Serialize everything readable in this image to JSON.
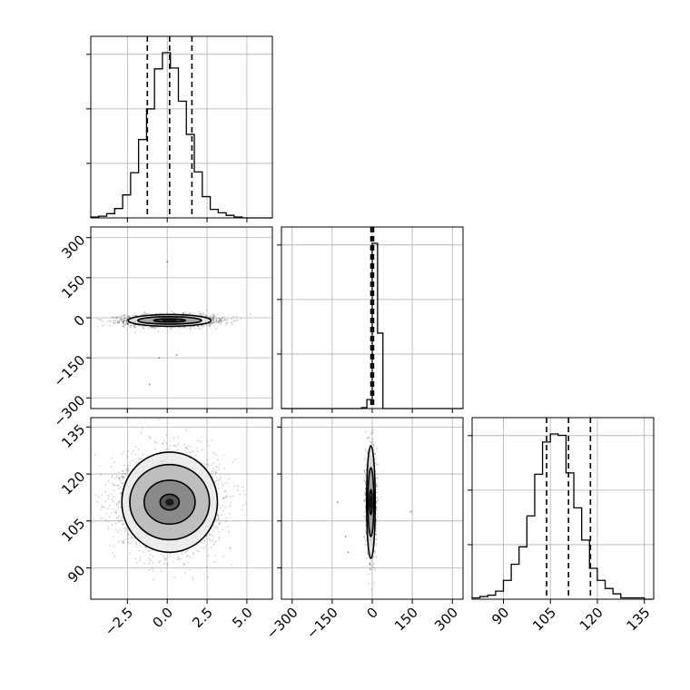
{
  "chart_data": {
    "type": "corner",
    "colors": {
      "line": "#000000",
      "grid": "#b0b0b0",
      "frame": "#000000",
      "density_fill": "#000000"
    },
    "grid": true,
    "parameters": [
      {
        "id": "p0",
        "range": [
          -4.8,
          6.6
        ]
      },
      {
        "id": "p1",
        "range": [
          -340,
          340
        ]
      },
      {
        "id": "p2",
        "range": [
          80,
          138
        ]
      }
    ],
    "axis_ticks": {
      "p0": [
        -2.5,
        0.0,
        2.5,
        5.0
      ],
      "p1": [
        -300,
        -150,
        0,
        150,
        300
      ],
      "p2": [
        90,
        105,
        120,
        135
      ]
    },
    "tick_labels": {
      "p0": [
        "−2.5",
        "0.0",
        "2.5",
        "5.0"
      ],
      "p1": [
        "−300",
        "−150",
        "0",
        "150",
        "300"
      ],
      "p2": [
        "90",
        "105",
        "120",
        "135"
      ]
    },
    "histograms": [
      {
        "param": "p0",
        "bin_start": -4.8,
        "bin_width": 0.5,
        "counts": [
          1,
          2,
          5,
          11,
          27,
          53,
          92,
          128,
          175,
          194,
          176,
          137,
          98,
          54,
          25,
          10,
          6,
          3,
          1,
          0,
          0,
          0,
          0
        ],
        "quantiles": [
          -1.25,
          0.15,
          1.55
        ]
      },
      {
        "param": "p1",
        "bin_start": -340,
        "bin_width": 20,
        "counts": [
          0,
          0,
          0,
          0,
          0,
          0,
          0,
          0,
          0,
          0,
          0,
          0,
          0,
          0,
          0,
          1,
          10,
          184,
          84,
          0,
          0,
          0,
          0,
          0,
          0,
          0,
          0,
          0,
          0,
          0,
          0,
          0,
          0,
          0
        ],
        "quantiles": [
          -5,
          0,
          5
        ]
      },
      {
        "param": "p2",
        "bin_start": 80,
        "bin_width": 2.5,
        "counts": [
          1,
          2,
          3,
          6,
          14,
          26,
          39,
          62,
          93,
          117,
          123,
          122,
          94,
          68,
          44,
          23,
          14,
          8,
          4,
          1,
          1,
          1,
          0
        ],
        "quantiles": [
          103.8,
          110.8,
          117.8
        ]
      }
    ],
    "pairs": [
      {
        "x": "p0",
        "y": "p1",
        "n_points": 2600,
        "cloud": {
          "x_center": 0.15,
          "x_sigma": 1.4,
          "y_center": -10,
          "y_sigma": 11
        },
        "sparse_points": [
          [
            0.0,
            210
          ],
          [
            -0.5,
            -150
          ],
          [
            -1.1,
            -250
          ],
          [
            0.6,
            -140
          ]
        ],
        "contour_levels": [
          {
            "x_half_width": 1.0,
            "y_half_height": 6
          },
          {
            "x_half_width": 2.0,
            "y_half_height": 14
          },
          {
            "x_half_width": 2.6,
            "y_half_height": 22
          }
        ]
      },
      {
        "x": "p0",
        "y": "p2",
        "n_points": 4200,
        "cloud": {
          "x_center": 0.15,
          "x_sigma": 1.45,
          "y_center": 111,
          "y_sigma": 7
        },
        "sparse_points": [],
        "contour_levels": [
          {
            "x_half_width": 0.6,
            "y_half_height": 2.5
          },
          {
            "x_half_width": 1.6,
            "y_half_height": 7
          },
          {
            "x_half_width": 2.5,
            "y_half_height": 12
          },
          {
            "x_half_width": 3.0,
            "y_half_height": 16
          }
        ]
      },
      {
        "x": "p1",
        "y": "p2",
        "n_points": 3500,
        "cloud": {
          "x_center": -5,
          "x_sigma": 8,
          "y_center": 111,
          "y_sigma": 7
        },
        "sparse_points": [
          [
            -90,
            95
          ],
          [
            -130,
            111
          ],
          [
            145,
            108
          ],
          [
            -100,
            100
          ]
        ],
        "contour_levels": [
          {
            "x_half_width": 5,
            "y_half_height": 4
          },
          {
            "x_half_width": 11,
            "y_half_height": 11
          },
          {
            "x_half_width": 16,
            "y_half_height": 18
          }
        ]
      }
    ]
  }
}
